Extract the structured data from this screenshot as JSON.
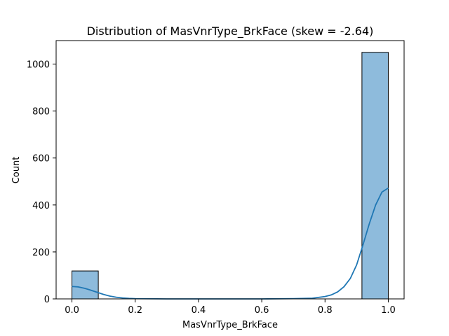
{
  "chart_data": {
    "type": "bar",
    "title": "Distribution of MasVnrType_BrkFace (skew = -2.64)",
    "xlabel": "MasVnrType_BrkFace",
    "ylabel": "Count",
    "xlim": [
      -0.05,
      1.05
    ],
    "ylim": [
      0,
      1100
    ],
    "xticks": [
      0.0,
      0.2,
      0.4,
      0.6,
      0.8,
      1.0
    ],
    "xtick_labels": [
      "0.0",
      "0.2",
      "0.4",
      "0.6",
      "0.8",
      "1.0"
    ],
    "yticks": [
      0,
      200,
      400,
      600,
      800,
      1000
    ],
    "ytick_labels": [
      "0",
      "200",
      "400",
      "600",
      "800",
      "1000"
    ],
    "bins": [
      {
        "x0": 0.0,
        "x1": 0.0833,
        "count": 119
      },
      {
        "x0": 0.9167,
        "x1": 1.0,
        "count": 1050
      }
    ],
    "kde": {
      "x": [
        0.0,
        0.02,
        0.04,
        0.06,
        0.08,
        0.1,
        0.12,
        0.14,
        0.16,
        0.18,
        0.2,
        0.3,
        0.4,
        0.5,
        0.6,
        0.7,
        0.76,
        0.8,
        0.82,
        0.84,
        0.86,
        0.88,
        0.9,
        0.92,
        0.94,
        0.96,
        0.98,
        1.0
      ],
      "y": [
        53,
        51,
        45,
        37,
        28,
        19,
        12,
        7,
        4,
        2,
        1,
        0,
        0,
        0,
        0,
        1,
        3,
        10,
        17,
        30,
        52,
        87,
        145,
        230,
        320,
        400,
        455,
        472
      ]
    },
    "bar_color": "#8ebbdc",
    "line_color": "#1f77b4",
    "grid": false
  }
}
